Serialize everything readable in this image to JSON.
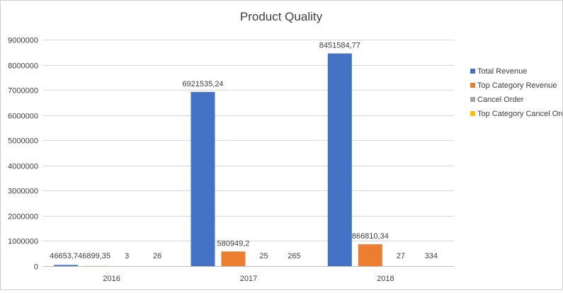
{
  "chart_data": {
    "type": "bar",
    "title": "Product Quality",
    "xlabel": "",
    "ylabel": "",
    "categories": [
      "2016",
      "2017",
      "2018"
    ],
    "ylim": [
      0,
      9000000
    ],
    "yticks": [
      0,
      1000000,
      2000000,
      3000000,
      4000000,
      5000000,
      6000000,
      7000000,
      8000000,
      9000000
    ],
    "ytick_labels": [
      "0",
      "1000000",
      "2000000",
      "3000000",
      "4000000",
      "5000000",
      "6000000",
      "7000000",
      "8000000",
      "9000000"
    ],
    "grid": true,
    "legend_position": "right",
    "series": [
      {
        "name": "Total Revenue",
        "color": "#4472c4",
        "values": [
          46653.74,
          6921535.24,
          8451584.77
        ],
        "labels": [
          "46653,74",
          "6921535,24",
          "8451584,77"
        ]
      },
      {
        "name": "Top Category Revenue",
        "color": "#ed7d31",
        "values": [
          6899.35,
          580949.2,
          866810.34
        ],
        "labels": [
          "6899,35",
          "580949,2",
          "866810,34"
        ]
      },
      {
        "name": "Cancel Order",
        "color": "#a5a5a5",
        "values": [
          3,
          25,
          27
        ],
        "labels": [
          "3",
          "25",
          "27"
        ]
      },
      {
        "name": "Top Category Cancel Order",
        "color": "#ffc000",
        "values": [
          26,
          265,
          334
        ],
        "labels": [
          "26",
          "265",
          "334"
        ]
      }
    ]
  }
}
